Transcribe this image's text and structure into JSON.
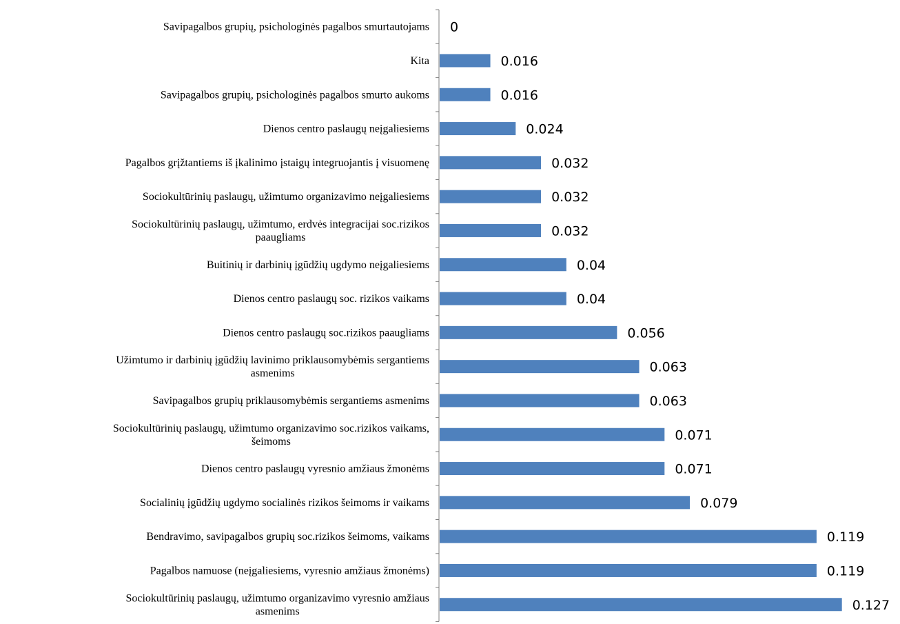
{
  "chart_data": {
    "type": "bar",
    "orientation": "horizontal",
    "title": "",
    "xlabel": "",
    "ylabel": "",
    "grid": false,
    "legend": "none",
    "bar_color": "#4f81bd",
    "categories": [
      "Savipagalbos grupių, psichologinės pagalbos smurtautojams",
      "Kita",
      "Savipagalbos grupių, psichologinės pagalbos smurto aukoms",
      "Dienos centro paslaugų neįgaliesiems",
      "Pagalbos grįžtantiems iš įkalinimo įstaigų integruojantis į visuomenę",
      "Sociokultūrinių paslaugų, užimtumo organizavimo neįgaliesiems",
      "Sociokultūrinių paslaugų, užimtumo, erdvės integracijai soc.rizikos paaugliams",
      "Buitinių ir darbinių įgūdžių ugdymo neįgaliesiems",
      "Dienos centro paslaugų soc. rizikos vaikams",
      "Dienos centro paslaugų soc.rizikos paaugliams",
      "Užimtumo ir darbinių įgūdžių lavinimo priklausomybėmis sergantiems asmenims",
      "Savipagalbos grupių priklausomybėmis sergantiems asmenims",
      "Sociokultūrinių paslaugų, užimtumo organizavimo soc.rizikos vaikams, šeimoms",
      "Dienos centro paslaugų vyresnio amžiaus žmonėms",
      "Socialinių įgūdžių ugdymo socialinės rizikos šeimoms ir vaikams",
      "Bendravimo, savipagalbos grupių soc.rizikos šeimoms, vaikams",
      "Pagalbos namuose (neįgaliesiems, vyresnio amžiaus žmonėms)",
      "Sociokultūrinių paslaugų, užimtumo organizavimo vyresnio amžiaus asmenims"
    ],
    "label_lines": [
      [
        "Savipagalbos grupių, psichologinės pagalbos smurtautojams"
      ],
      [
        "Kita"
      ],
      [
        "Savipagalbos grupių, psichologinės pagalbos smurto aukoms"
      ],
      [
        "Dienos centro paslaugų neįgaliesiems"
      ],
      [
        "Pagalbos grįžtantiems iš įkalinimo įstaigų integruojantis į visuomenę"
      ],
      [
        "Sociokultūrinių paslaugų, užimtumo organizavimo neįgaliesiems"
      ],
      [
        "Sociokultūrinių paslaugų, užimtumo, erdvės integracijai soc.rizikos",
        "paaugliams"
      ],
      [
        "Buitinių ir darbinių įgūdžių ugdymo neįgaliesiems"
      ],
      [
        "Dienos centro paslaugų soc. rizikos vaikams"
      ],
      [
        "Dienos centro paslaugų soc.rizikos paaugliams"
      ],
      [
        "Užimtumo ir darbinių įgūdžių lavinimo priklausomybėmis sergantiems",
        "asmenims"
      ],
      [
        "Savipagalbos grupių priklausomybėmis sergantiems asmenims"
      ],
      [
        "Sociokultūrinių paslaugų, užimtumo organizavimo soc.rizikos vaikams,",
        "šeimoms"
      ],
      [
        "Dienos centro paslaugų vyresnio amžiaus žmonėms"
      ],
      [
        "Socialinių įgūdžių ugdymo socialinės rizikos šeimoms ir vaikams"
      ],
      [
        "Bendravimo, savipagalbos grupių soc.rizikos šeimoms, vaikams"
      ],
      [
        "Pagalbos namuose (neįgaliesiems, vyresnio amžiaus žmonėms)"
      ],
      [
        "Sociokultūrinių paslaugų, užimtumo organizavimo vyresnio amžiaus",
        "asmenims"
      ]
    ],
    "values": [
      0,
      0.016,
      0.016,
      0.024,
      0.032,
      0.032,
      0.032,
      0.04,
      0.04,
      0.056,
      0.063,
      0.063,
      0.071,
      0.071,
      0.079,
      0.119,
      0.119,
      0.127
    ],
    "value_labels": [
      "0",
      "0.016",
      "0.016",
      "0.024",
      "0.032",
      "0.032",
      "0.032",
      "0.04",
      "0.04",
      "0.056",
      "0.063",
      "0.063",
      "0.071",
      "0.071",
      "0.079",
      "0.119",
      "0.119",
      "0.127"
    ]
  }
}
